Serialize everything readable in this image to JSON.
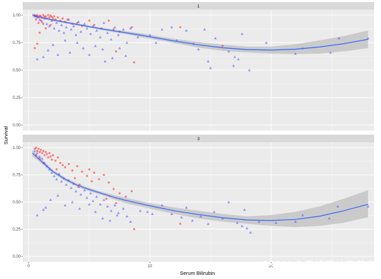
{
  "chart_data": {
    "type": "scatter",
    "xlabel": "Serum Bilirubin",
    "ylabel": "Survival",
    "xlim": [
      -0.5,
      28.5
    ],
    "ylim": [
      -0.05,
      1.05
    ],
    "x_ticks": [
      0,
      10,
      20
    ],
    "x_tick_labels": [
      "0",
      "10",
      "20"
    ],
    "y_ticks": [
      0,
      0.25,
      0.5,
      0.75,
      1.0
    ],
    "y_tick_labels": [
      "0.00",
      "0.25",
      "0.50",
      "0.75",
      "1.00"
    ],
    "grid": true,
    "legend": "none",
    "colors": {
      "panel_bg": "#ebebeb",
      "strip_bg": "#d9d9d9",
      "grid_major": "#ffffff",
      "smooth_line": "#3366ff",
      "ribbon": "#bfbfbf",
      "red_points": "#ff2a2a",
      "blue_points": "#5555ff"
    },
    "facets": [
      {
        "label": "1",
        "smooth": {
          "x": [
            0.3,
            1,
            2,
            3,
            4,
            5,
            6,
            7,
            8,
            9,
            10,
            12,
            14,
            16,
            18,
            20,
            22,
            24,
            26,
            28
          ],
          "y": [
            1.0,
            0.98,
            0.955,
            0.935,
            0.915,
            0.895,
            0.875,
            0.857,
            0.84,
            0.822,
            0.803,
            0.765,
            0.73,
            0.703,
            0.687,
            0.682,
            0.69,
            0.71,
            0.74,
            0.78
          ],
          "lower": [
            0.985,
            0.97,
            0.945,
            0.925,
            0.905,
            0.885,
            0.865,
            0.845,
            0.826,
            0.805,
            0.785,
            0.745,
            0.705,
            0.675,
            0.66,
            0.65,
            0.645,
            0.65,
            0.67,
            0.7
          ],
          "upper": [
            1.015,
            0.99,
            0.965,
            0.945,
            0.925,
            0.905,
            0.885,
            0.869,
            0.854,
            0.839,
            0.821,
            0.785,
            0.755,
            0.731,
            0.714,
            0.714,
            0.735,
            0.77,
            0.81,
            0.86
          ]
        },
        "points_red": [
          [
            0.5,
            1.0
          ],
          [
            0.6,
            0.99
          ],
          [
            0.7,
            1.0
          ],
          [
            0.8,
            0.98
          ],
          [
            0.9,
            0.995
          ],
          [
            1.0,
            0.99
          ],
          [
            1.1,
            0.975
          ],
          [
            1.2,
            1.0
          ],
          [
            1.3,
            0.985
          ],
          [
            1.4,
            0.99
          ],
          [
            1.5,
            0.97
          ],
          [
            1.6,
            1.0
          ],
          [
            1.7,
            0.98
          ],
          [
            1.8,
            0.995
          ],
          [
            1.9,
            0.985
          ],
          [
            2.0,
            0.97
          ],
          [
            2.1,
            0.99
          ],
          [
            2.2,
            0.96
          ],
          [
            2.4,
            0.98
          ],
          [
            2.6,
            0.95
          ],
          [
            2.8,
            0.97
          ],
          [
            3.0,
            0.94
          ],
          [
            3.2,
            0.96
          ],
          [
            0.6,
            0.96
          ],
          [
            0.8,
            0.93
          ],
          [
            1.0,
            0.95
          ],
          [
            1.2,
            0.92
          ],
          [
            0.5,
            0.7
          ],
          [
            0.7,
            0.74
          ],
          [
            0.9,
            0.84
          ],
          [
            3.6,
            0.92
          ],
          [
            4.0,
            0.93
          ],
          [
            4.4,
            0.9
          ],
          [
            5.0,
            0.95
          ],
          [
            5.4,
            0.91
          ],
          [
            6.0,
            0.88
          ],
          [
            6.6,
            0.95
          ],
          [
            7.0,
            0.87
          ],
          [
            7.5,
            0.85
          ],
          [
            8.5,
            0.89
          ],
          [
            8.7,
            0.57
          ],
          [
            7.2,
            0.67
          ],
          [
            16.0,
            0.72
          ],
          [
            12.5,
            0.89
          ],
          [
            1.4,
            0.88
          ],
          [
            1.8,
            0.91
          ]
        ],
        "points_blue": [
          [
            0.5,
            0.99
          ],
          [
            0.7,
            0.98
          ],
          [
            0.9,
            0.96
          ],
          [
            1.1,
            0.94
          ],
          [
            1.3,
            0.97
          ],
          [
            1.5,
            0.92
          ],
          [
            1.7,
            0.9
          ],
          [
            1.9,
            0.95
          ],
          [
            2.1,
            0.88
          ],
          [
            2.3,
            0.93
          ],
          [
            2.5,
            0.86
          ],
          [
            2.7,
            0.91
          ],
          [
            2.9,
            0.84
          ],
          [
            3.1,
            0.89
          ],
          [
            3.3,
            0.96
          ],
          [
            3.5,
            0.87
          ],
          [
            3.7,
            0.9
          ],
          [
            3.9,
            0.82
          ],
          [
            4.1,
            0.94
          ],
          [
            4.3,
            0.85
          ],
          [
            4.6,
            0.92
          ],
          [
            4.8,
            0.88
          ],
          [
            5.1,
            0.83
          ],
          [
            5.3,
            0.9
          ],
          [
            5.6,
            0.86
          ],
          [
            5.9,
            0.8
          ],
          [
            6.2,
            0.93
          ],
          [
            6.5,
            0.84
          ],
          [
            6.8,
            0.78
          ],
          [
            7.1,
            0.89
          ],
          [
            7.4,
            0.82
          ],
          [
            7.8,
            0.87
          ],
          [
            8.1,
            0.75
          ],
          [
            8.4,
            0.88
          ],
          [
            0.7,
            0.6
          ],
          [
            1.2,
            0.62
          ],
          [
            1.6,
            0.68
          ],
          [
            2.0,
            0.73
          ],
          [
            2.4,
            0.64
          ],
          [
            3.0,
            0.77
          ],
          [
            3.4,
            0.66
          ],
          [
            4.0,
            0.75
          ],
          [
            4.5,
            0.7
          ],
          [
            5.0,
            0.64
          ],
          [
            5.5,
            0.72
          ],
          [
            6.1,
            0.69
          ],
          [
            6.3,
            0.58
          ],
          [
            6.9,
            0.61
          ],
          [
            7.5,
            0.7
          ],
          [
            8.0,
            0.63
          ],
          [
            10.5,
            0.75
          ],
          [
            11.0,
            0.87
          ],
          [
            11.8,
            0.89
          ],
          [
            12.2,
            0.77
          ],
          [
            13.0,
            0.86
          ],
          [
            13.6,
            0.74
          ],
          [
            14.0,
            0.69
          ],
          [
            14.5,
            0.87
          ],
          [
            14.8,
            0.58
          ],
          [
            15.0,
            0.52
          ],
          [
            15.4,
            0.79
          ],
          [
            16.5,
            0.67
          ],
          [
            16.9,
            0.54
          ],
          [
            17.3,
            0.6
          ],
          [
            17.6,
            0.83
          ],
          [
            18.2,
            0.5
          ],
          [
            19.6,
            0.75
          ],
          [
            22.0,
            0.65
          ],
          [
            22.6,
            0.7
          ],
          [
            24.9,
            0.66
          ],
          [
            25.6,
            0.79
          ],
          [
            28.0,
            0.79
          ],
          [
            17.0,
            0.62
          ],
          [
            9.0,
            0.8
          ],
          [
            10.0,
            0.82
          ]
        ]
      },
      {
        "label": "3",
        "smooth": {
          "x": [
            0.3,
            1,
            2,
            3,
            4,
            5,
            6,
            7,
            8,
            9,
            10,
            12,
            14,
            16,
            18,
            20,
            22,
            24,
            26,
            28
          ],
          "y": [
            0.95,
            0.88,
            0.78,
            0.71,
            0.655,
            0.615,
            0.58,
            0.545,
            0.515,
            0.49,
            0.465,
            0.42,
            0.385,
            0.355,
            0.335,
            0.33,
            0.34,
            0.37,
            0.42,
            0.48
          ],
          "lower": [
            0.92,
            0.86,
            0.765,
            0.695,
            0.64,
            0.6,
            0.565,
            0.525,
            0.49,
            0.465,
            0.44,
            0.39,
            0.35,
            0.32,
            0.3,
            0.28,
            0.27,
            0.28,
            0.31,
            0.36
          ],
          "upper": [
            0.98,
            0.9,
            0.795,
            0.725,
            0.67,
            0.63,
            0.595,
            0.565,
            0.54,
            0.515,
            0.49,
            0.45,
            0.42,
            0.39,
            0.37,
            0.38,
            0.41,
            0.46,
            0.53,
            0.61
          ]
        },
        "points_red": [
          [
            0.5,
            0.99
          ],
          [
            0.6,
            1.0
          ],
          [
            0.7,
            0.97
          ],
          [
            0.8,
            0.99
          ],
          [
            0.9,
            0.96
          ],
          [
            1.0,
            0.98
          ],
          [
            1.1,
            0.95
          ],
          [
            1.2,
            0.97
          ],
          [
            1.3,
            0.93
          ],
          [
            1.4,
            0.96
          ],
          [
            1.5,
            0.94
          ],
          [
            1.6,
            0.91
          ],
          [
            1.7,
            0.95
          ],
          [
            1.8,
            0.92
          ],
          [
            1.9,
            0.89
          ],
          [
            2.0,
            0.93
          ],
          [
            2.2,
            0.88
          ],
          [
            2.4,
            0.91
          ],
          [
            2.6,
            0.86
          ],
          [
            2.8,
            0.84
          ],
          [
            3.0,
            0.82
          ],
          [
            3.3,
            0.85
          ],
          [
            3.6,
            0.79
          ],
          [
            4.0,
            0.83
          ],
          [
            4.4,
            0.78
          ],
          [
            4.8,
            0.74
          ],
          [
            5.0,
            0.8
          ],
          [
            5.4,
            0.77
          ],
          [
            5.8,
            0.71
          ],
          [
            6.2,
            0.75
          ],
          [
            6.6,
            0.68
          ],
          [
            7.0,
            0.62
          ],
          [
            7.5,
            0.58
          ],
          [
            8.0,
            0.55
          ],
          [
            8.5,
            0.6
          ],
          [
            8.7,
            0.25
          ],
          [
            0.6,
            0.93
          ],
          [
            0.9,
            0.9
          ],
          [
            1.2,
            0.86
          ],
          [
            4.2,
            0.66
          ],
          [
            5.2,
            0.69
          ],
          [
            6.4,
            0.53
          ],
          [
            7.2,
            0.49
          ],
          [
            12.5,
            0.3
          ],
          [
            3.8,
            0.72
          ],
          [
            2.3,
            0.8
          ]
        ],
        "points_blue": [
          [
            0.5,
            0.97
          ],
          [
            0.7,
            0.95
          ],
          [
            0.9,
            0.92
          ],
          [
            1.1,
            0.9
          ],
          [
            1.3,
            0.86
          ],
          [
            1.5,
            0.83
          ],
          [
            1.7,
            0.8
          ],
          [
            1.9,
            0.77
          ],
          [
            2.1,
            0.74
          ],
          [
            2.3,
            0.71
          ],
          [
            2.5,
            0.76
          ],
          [
            2.7,
            0.69
          ],
          [
            2.9,
            0.72
          ],
          [
            3.1,
            0.66
          ],
          [
            3.3,
            0.7
          ],
          [
            3.5,
            0.63
          ],
          [
            3.7,
            0.67
          ],
          [
            3.9,
            0.6
          ],
          [
            4.1,
            0.64
          ],
          [
            4.3,
            0.57
          ],
          [
            4.6,
            0.61
          ],
          [
            4.8,
            0.54
          ],
          [
            5.1,
            0.58
          ],
          [
            5.3,
            0.51
          ],
          [
            5.6,
            0.55
          ],
          [
            5.9,
            0.48
          ],
          [
            6.2,
            0.52
          ],
          [
            6.5,
            0.46
          ],
          [
            6.8,
            0.42
          ],
          [
            7.1,
            0.47
          ],
          [
            7.4,
            0.4
          ],
          [
            7.8,
            0.44
          ],
          [
            8.1,
            0.37
          ],
          [
            0.7,
            0.38
          ],
          [
            1.2,
            0.43
          ],
          [
            1.4,
            0.45
          ],
          [
            1.8,
            0.52
          ],
          [
            2.4,
            0.56
          ],
          [
            3.0,
            0.47
          ],
          [
            3.6,
            0.5
          ],
          [
            4.2,
            0.44
          ],
          [
            5.0,
            0.48
          ],
          [
            5.5,
            0.41
          ],
          [
            6.1,
            0.35
          ],
          [
            6.7,
            0.33
          ],
          [
            7.3,
            0.38
          ],
          [
            8.4,
            0.32
          ],
          [
            9.2,
            0.42
          ],
          [
            10.2,
            0.39
          ],
          [
            11.0,
            0.47
          ],
          [
            11.8,
            0.39
          ],
          [
            12.6,
            0.36
          ],
          [
            13.5,
            0.33
          ],
          [
            14.2,
            0.37
          ],
          [
            14.8,
            0.3
          ],
          [
            15.3,
            0.41
          ],
          [
            16.0,
            0.35
          ],
          [
            17.2,
            0.31
          ],
          [
            17.6,
            0.28
          ],
          [
            18.0,
            0.26
          ],
          [
            18.3,
            0.22
          ],
          [
            19.0,
            0.32
          ],
          [
            20.4,
            0.31
          ],
          [
            22.0,
            0.32
          ],
          [
            22.6,
            0.38
          ],
          [
            24.8,
            0.35
          ],
          [
            25.5,
            0.46
          ],
          [
            28.0,
            0.46
          ],
          [
            16.5,
            0.5
          ],
          [
            17.8,
            0.43
          ],
          [
            13.0,
            0.45
          ],
          [
            9.8,
            0.41
          ]
        ]
      }
    ]
  },
  "watermark": "CSDN @天桥下的卖艺者"
}
